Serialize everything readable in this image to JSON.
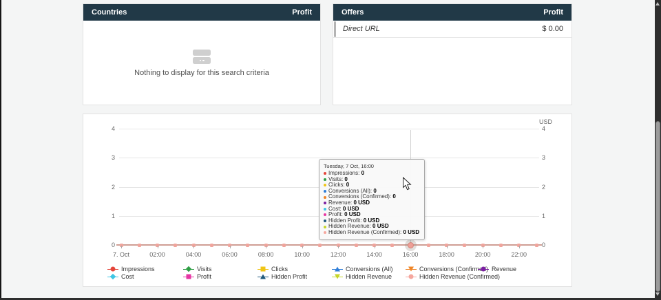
{
  "page": {
    "background": "#f4f5f5",
    "header_color": "#213947"
  },
  "countries_panel": {
    "title": "Countries",
    "value_column": "Profit",
    "empty_message": "Nothing to display for this search criteria"
  },
  "offers_panel": {
    "title": "Offers",
    "value_column": "Profit",
    "rows": [
      {
        "label": "Direct URL",
        "value": "$ 0.00"
      }
    ]
  },
  "chart": {
    "right_axis_unit": "USD",
    "y_ticks": [
      "4",
      "3",
      "2",
      "1",
      "0"
    ],
    "x_labels": [
      "7. Oct",
      "02:00",
      "04:00",
      "06:00",
      "08:00",
      "10:00",
      "12:00",
      "14:00",
      "16:00",
      "18:00",
      "20:00",
      "22:00"
    ],
    "hours": 24,
    "hovered_index": 16,
    "series_line_color": "#cf9d94",
    "marker_color": "#f0a49c",
    "tooltip": {
      "title": "Tuesday, 7 Oct, 16:00",
      "items": [
        {
          "label": "Impressions",
          "value": "0",
          "color": "#e4453a"
        },
        {
          "label": "Visits",
          "value": "0",
          "color": "#2e9e44"
        },
        {
          "label": "Clicks",
          "value": "0",
          "color": "#f0c515"
        },
        {
          "label": "Conversions (All)",
          "value": "0",
          "color": "#2f7ed8"
        },
        {
          "label": "Conversions (Confirmed)",
          "value": "0",
          "color": "#ef8425"
        },
        {
          "label": "Revenue",
          "value": "0 USD",
          "color": "#7b1fa2"
        },
        {
          "label": "Cost",
          "value": "0 USD",
          "color": "#3fc6e4"
        },
        {
          "label": "Profit",
          "value": "0 USD",
          "color": "#e636a4"
        },
        {
          "label": "Hidden Profit",
          "value": "0 USD",
          "color": "#20597d"
        },
        {
          "label": "Hidden Revenue",
          "value": "0 USD",
          "color": "#c6d62a"
        },
        {
          "label": "Hidden Revenue (Confirmed)",
          "value": "0 USD",
          "color": "#f5a79e"
        }
      ]
    },
    "legend": {
      "rows": [
        [
          {
            "label": "Impressions",
            "color": "#e4453a",
            "shape": "circle"
          },
          {
            "label": "Visits",
            "color": "#2e9e44",
            "shape": "diamond"
          },
          {
            "label": "Clicks",
            "color": "#f0c515",
            "shape": "square"
          },
          {
            "label": "Conversions (All)",
            "color": "#2f7ed8",
            "shape": "triangle"
          },
          {
            "label": "Conversions (Confirmed)",
            "color": "#ef8425",
            "shape": "triangle-down"
          },
          {
            "label": "Revenue",
            "color": "#7b1fa2",
            "shape": "circle"
          }
        ],
        [
          {
            "label": "Cost",
            "color": "#3fc6e4",
            "shape": "diamond"
          },
          {
            "label": "Profit",
            "color": "#e636a4",
            "shape": "square"
          },
          {
            "label": "Hidden Profit",
            "color": "#20597d",
            "shape": "triangle"
          },
          {
            "label": "Hidden Revenue",
            "color": "#c6d62a",
            "shape": "triangle-down"
          },
          {
            "label": "Hidden Revenue (Confirmed)",
            "color": "#f5a79e",
            "shape": "circle"
          }
        ]
      ]
    }
  },
  "chart_data": {
    "type": "line",
    "x": [
      "00:00",
      "01:00",
      "02:00",
      "03:00",
      "04:00",
      "05:00",
      "06:00",
      "07:00",
      "08:00",
      "09:00",
      "10:00",
      "11:00",
      "12:00",
      "13:00",
      "14:00",
      "15:00",
      "16:00",
      "17:00",
      "18:00",
      "19:00",
      "20:00",
      "21:00",
      "22:00",
      "23:00"
    ],
    "x_start_label": "7. Oct",
    "series": [
      {
        "name": "Impressions",
        "values": [
          0,
          0,
          0,
          0,
          0,
          0,
          0,
          0,
          0,
          0,
          0,
          0,
          0,
          0,
          0,
          0,
          0,
          0,
          0,
          0,
          0,
          0,
          0,
          0
        ]
      },
      {
        "name": "Visits",
        "values": [
          0,
          0,
          0,
          0,
          0,
          0,
          0,
          0,
          0,
          0,
          0,
          0,
          0,
          0,
          0,
          0,
          0,
          0,
          0,
          0,
          0,
          0,
          0,
          0
        ]
      },
      {
        "name": "Clicks",
        "values": [
          0,
          0,
          0,
          0,
          0,
          0,
          0,
          0,
          0,
          0,
          0,
          0,
          0,
          0,
          0,
          0,
          0,
          0,
          0,
          0,
          0,
          0,
          0,
          0
        ]
      },
      {
        "name": "Conversions (All)",
        "values": [
          0,
          0,
          0,
          0,
          0,
          0,
          0,
          0,
          0,
          0,
          0,
          0,
          0,
          0,
          0,
          0,
          0,
          0,
          0,
          0,
          0,
          0,
          0,
          0
        ]
      },
      {
        "name": "Conversions (Confirmed)",
        "values": [
          0,
          0,
          0,
          0,
          0,
          0,
          0,
          0,
          0,
          0,
          0,
          0,
          0,
          0,
          0,
          0,
          0,
          0,
          0,
          0,
          0,
          0,
          0,
          0
        ]
      },
      {
        "name": "Revenue",
        "values": [
          0,
          0,
          0,
          0,
          0,
          0,
          0,
          0,
          0,
          0,
          0,
          0,
          0,
          0,
          0,
          0,
          0,
          0,
          0,
          0,
          0,
          0,
          0,
          0
        ]
      },
      {
        "name": "Cost",
        "values": [
          0,
          0,
          0,
          0,
          0,
          0,
          0,
          0,
          0,
          0,
          0,
          0,
          0,
          0,
          0,
          0,
          0,
          0,
          0,
          0,
          0,
          0,
          0,
          0
        ]
      },
      {
        "name": "Profit",
        "values": [
          0,
          0,
          0,
          0,
          0,
          0,
          0,
          0,
          0,
          0,
          0,
          0,
          0,
          0,
          0,
          0,
          0,
          0,
          0,
          0,
          0,
          0,
          0,
          0
        ]
      },
      {
        "name": "Hidden Profit",
        "values": [
          0,
          0,
          0,
          0,
          0,
          0,
          0,
          0,
          0,
          0,
          0,
          0,
          0,
          0,
          0,
          0,
          0,
          0,
          0,
          0,
          0,
          0,
          0,
          0
        ]
      },
      {
        "name": "Hidden Revenue",
        "values": [
          0,
          0,
          0,
          0,
          0,
          0,
          0,
          0,
          0,
          0,
          0,
          0,
          0,
          0,
          0,
          0,
          0,
          0,
          0,
          0,
          0,
          0,
          0,
          0
        ]
      },
      {
        "name": "Hidden Revenue (Confirmed)",
        "values": [
          0,
          0,
          0,
          0,
          0,
          0,
          0,
          0,
          0,
          0,
          0,
          0,
          0,
          0,
          0,
          0,
          0,
          0,
          0,
          0,
          0,
          0,
          0,
          0
        ]
      }
    ],
    "ylabel": "",
    "xlabel": "",
    "y_unit": "USD",
    "ylim": [
      0,
      4
    ],
    "grid": true,
    "legend_position": "bottom",
    "hovered_point": {
      "time": "16:00",
      "date": "Tuesday, 7 Oct",
      "all_values": 0
    }
  }
}
